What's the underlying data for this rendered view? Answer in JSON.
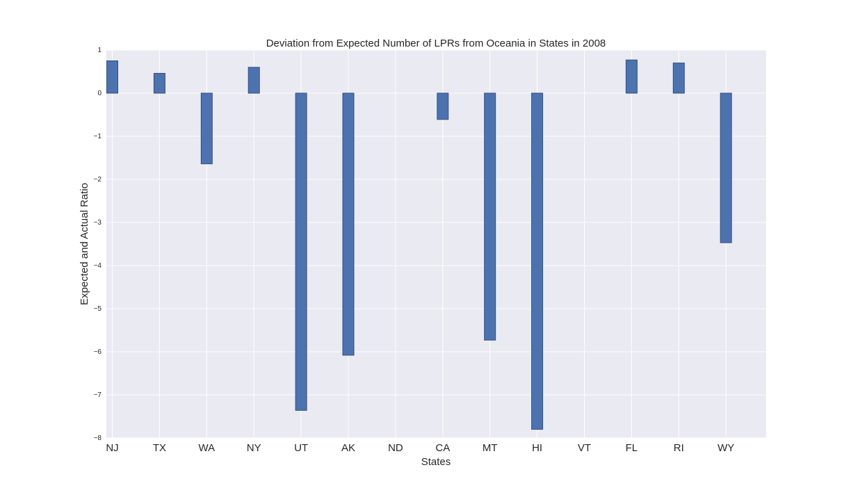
{
  "chart_data": {
    "type": "bar",
    "title": "Deviation from Expected Number of LPRs from Oceania in States in 2008",
    "xlabel": "States",
    "ylabel": "Expected and Actual Ratio",
    "categories": [
      "NJ",
      "TX",
      "WA",
      "NY",
      "UT",
      "AK",
      "ND",
      "CA",
      "MT",
      "HI",
      "VT",
      "FL",
      "RI",
      "WY"
    ],
    "values": [
      0.75,
      0.46,
      -1.64,
      0.6,
      -7.36,
      -6.08,
      0,
      -0.61,
      -5.73,
      -7.8,
      0,
      0.77,
      0.7,
      -3.47
    ],
    "ylim": [
      -8,
      1
    ],
    "yticks": [
      "1",
      "0",
      "−1",
      "−2",
      "−3",
      "−4",
      "−5",
      "−6",
      "−7",
      "−8"
    ],
    "grid": true,
    "colors": {
      "bar": "#4c72b0",
      "bar_edge": "#354f80",
      "plot_bg": "#eaeaf2",
      "grid": "#ffffff",
      "text": "#262626"
    }
  }
}
